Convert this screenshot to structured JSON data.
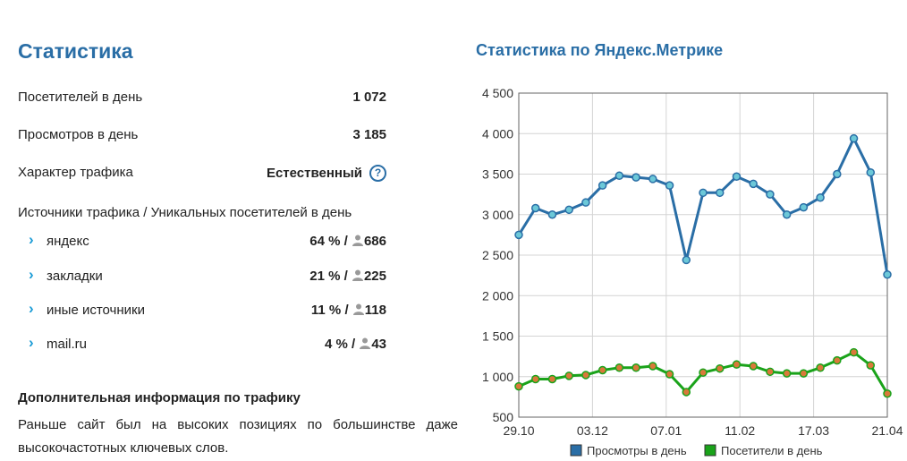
{
  "stats": {
    "title": "Статистика",
    "visitors_label": "Посетителей в день",
    "visitors_value": "1 072",
    "views_label": "Просмотров в день",
    "views_value": "3 185",
    "traffic_label": "Характер трафика",
    "traffic_value": "Естественный",
    "help_glyph": "?",
    "sources_header": "Источники трафика / Уникальных посетителей в день",
    "chevron_glyph": "›",
    "separator": " / ",
    "sources": [
      {
        "name": "яндекс",
        "percent": "64 %",
        "unique": "686"
      },
      {
        "name": "закладки",
        "percent": "21 %",
        "unique": "225"
      },
      {
        "name": "иные источники",
        "percent": "11 %",
        "unique": "118"
      },
      {
        "name": "mail.ru",
        "percent": "4 %",
        "unique": "43"
      }
    ],
    "extra_title": "Дополнительная информация по трафику",
    "extra_text": "Раньше сайт был на высоких позициях по большинстве даже высокочастотных ключевых слов."
  },
  "colors": {
    "accent": "#2a6ea6",
    "chevron": "#1a9bd6",
    "views_line": "#2a6ea6",
    "views_marker": "#6cc8d8",
    "visitors_line": "#1aa31a",
    "visitors_marker": "#d9793a"
  },
  "chart_data": {
    "type": "line",
    "title": "Статистика по Яндекс.Метрике",
    "x_labels": [
      "29.10",
      "03.12",
      "07.01",
      "11.02",
      "17.03",
      "21.04"
    ],
    "ylim": [
      500,
      4500
    ],
    "yticks": [
      "4 500",
      "4 000",
      "3 500",
      "3 000",
      "2 500",
      "2 000",
      "1 500",
      "1 000",
      "500"
    ],
    "legend_position": "bottom",
    "series": [
      {
        "name": "Просмотры в день",
        "values": [
          2750,
          3080,
          3000,
          3060,
          3150,
          3360,
          3480,
          3460,
          3440,
          3360,
          2440,
          3270,
          3270,
          3470,
          3380,
          3250,
          3000,
          3090,
          3210,
          3500,
          3940,
          3520,
          2260
        ]
      },
      {
        "name": "Посетители в день",
        "values": [
          880,
          970,
          970,
          1010,
          1020,
          1080,
          1110,
          1110,
          1130,
          1030,
          810,
          1050,
          1100,
          1150,
          1130,
          1060,
          1040,
          1040,
          1110,
          1200,
          1300,
          1140,
          790
        ]
      }
    ]
  }
}
